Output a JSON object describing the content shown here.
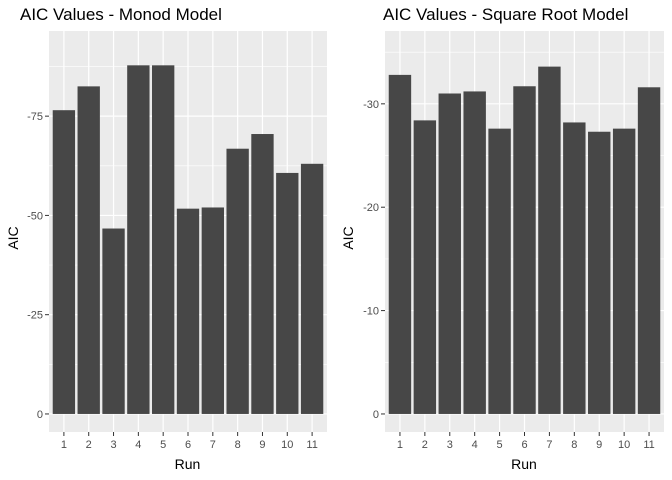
{
  "chart_data": [
    {
      "type": "bar",
      "title": "AIC Values - Monod Model",
      "xlabel": "Run",
      "ylabel": "AIC",
      "categories": [
        "1",
        "2",
        "3",
        "4",
        "5",
        "6",
        "7",
        "8",
        "9",
        "10",
        "11"
      ],
      "values": [
        -76.5,
        -82.5,
        -46.7,
        -87.8,
        -87.8,
        -51.7,
        -52.0,
        -66.8,
        -70.5,
        -60.7,
        -63.0
      ],
      "yticks": [
        0,
        -25,
        -50,
        -75
      ],
      "yticklabels": [
        "0",
        "-25",
        "-50",
        "-75"
      ],
      "ylim": [
        0,
        -91.9
      ],
      "y_direction": "more negative values upward",
      "grid": true,
      "legend": "none",
      "colors": {
        "panel": "#ebebeb",
        "bar": "#474747",
        "grid": "#ffffff"
      }
    },
    {
      "type": "bar",
      "title": "AIC Values - Square Root Model",
      "xlabel": "Run",
      "ylabel": "AIC",
      "categories": [
        "1",
        "2",
        "3",
        "4",
        "5",
        "6",
        "7",
        "8",
        "9",
        "10",
        "11"
      ],
      "values": [
        -32.8,
        -28.4,
        -31.0,
        -31.2,
        -27.6,
        -31.7,
        -33.6,
        -28.2,
        -27.3,
        -27.6,
        -31.6
      ],
      "yticks": [
        0,
        -10,
        -20,
        -30
      ],
      "yticklabels": [
        "0",
        "-10",
        "-20",
        "-30"
      ],
      "ylim": [
        0,
        -35.3
      ],
      "y_direction": "more negative values upward",
      "grid": true,
      "legend": "none",
      "colors": {
        "panel": "#ebebeb",
        "bar": "#474747",
        "grid": "#ffffff"
      }
    }
  ]
}
